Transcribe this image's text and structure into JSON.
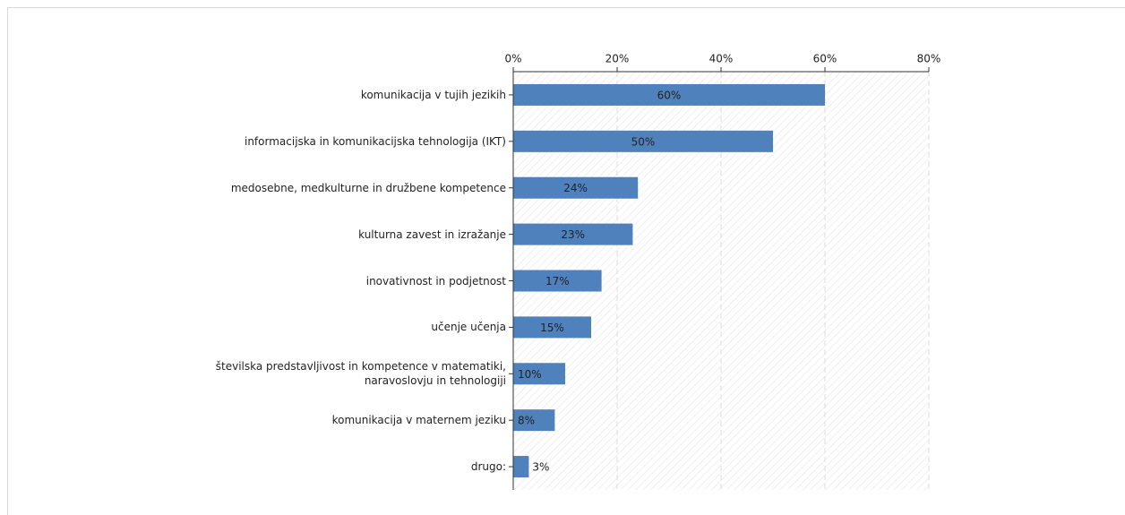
{
  "chart_data": {
    "type": "bar",
    "orientation": "horizontal",
    "categories": [
      "komunikacija v tujih jezikih",
      "informacijska in komunikacijska tehnologija (IKT)",
      "medosebne, medkulturne in družbene kompetence",
      "kulturna zavest in izražanje",
      "inovativnost in podjetnost",
      "učenje učenja",
      "številska predstavljivost in kompetence v matematiki,\nnaravoslovju in tehnologiji",
      "komunikacija v maternem jeziku",
      "drugo:"
    ],
    "values": [
      60,
      50,
      24,
      23,
      17,
      15,
      10,
      8,
      3
    ],
    "value_labels": [
      "60%",
      "50%",
      "24%",
      "23%",
      "17%",
      "15%",
      "10%",
      "8%",
      "3%"
    ],
    "color": "#4f81bd",
    "xlim": [
      0,
      80
    ],
    "xticks": [
      {
        "value": 0,
        "label": "0%"
      },
      {
        "value": 20,
        "label": "20%"
      },
      {
        "value": 40,
        "label": "40%"
      },
      {
        "value": 60,
        "label": "60%"
      },
      {
        "value": 80,
        "label": "80%"
      }
    ],
    "grid": true
  }
}
